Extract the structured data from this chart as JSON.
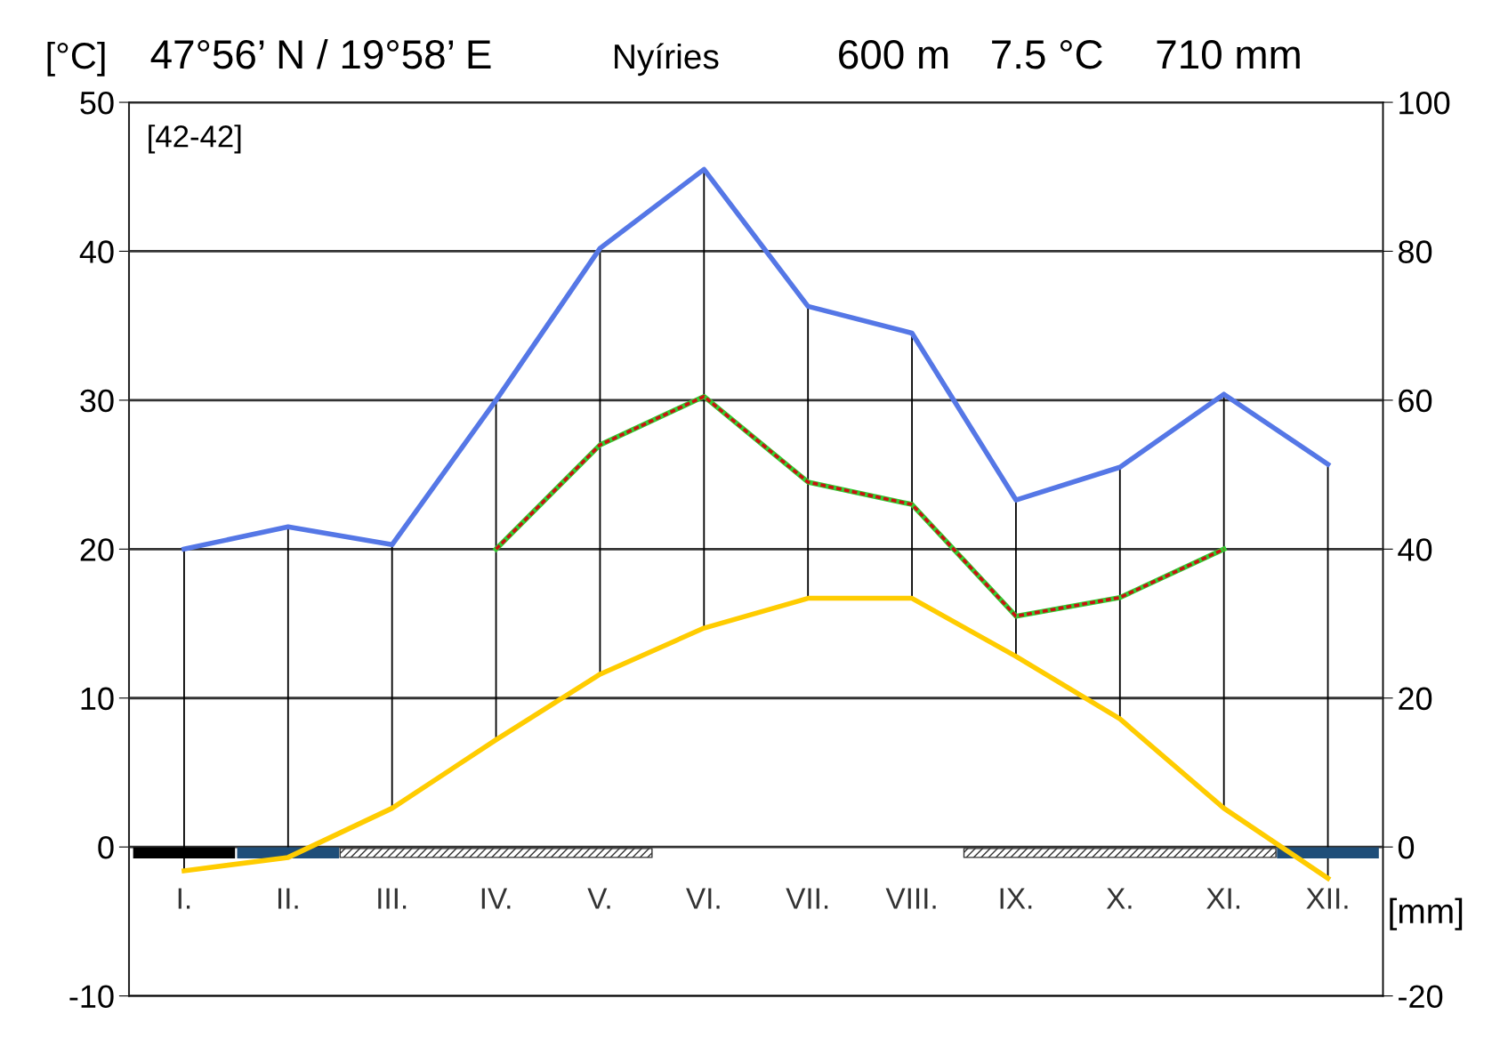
{
  "chart_data": {
    "type": "line",
    "ylabel": "[°C]",
    "y2label": "[mm]",
    "annotations": [
      "47°56’ N / 19°58’ E",
      "Nyíries",
      "600 m",
      "7.5 °C",
      "710 mm",
      "[42-42]"
    ],
    "categories": [
      "I.",
      "II.",
      "III.",
      "IV.",
      "V.",
      "VI.",
      "VII.",
      "VIII.",
      "IX.",
      "X.",
      "XI.",
      "XII."
    ],
    "series": [
      {
        "color": "#ffcc00",
        "values": [
          -1.6,
          -0.7,
          2.6,
          7.2,
          11.6,
          14.7,
          16.7,
          16.7,
          12.8,
          8.6,
          2.6,
          -2.1
        ]
      },
      {
        "color": "#5577e6",
        "axis": "y2",
        "values": [
          40,
          43,
          40.6,
          60,
          80.4,
          91,
          72.6,
          69,
          46.6,
          51,
          60.8,
          51.4
        ]
      },
      {
        "color": "#33cc33",
        "axis": "y2",
        "line_style": "solid",
        "values": [
          null,
          null,
          null,
          40,
          54,
          60.5,
          49,
          46,
          31,
          33.5,
          40,
          null
        ]
      },
      {
        "color": "#cc1111",
        "axis": "y2",
        "line_style": "dashed",
        "values": [
          null,
          null,
          null,
          40,
          54,
          60.5,
          49,
          46,
          31,
          33.5,
          40,
          null
        ]
      }
    ],
    "ylim": [
      -10,
      50
    ],
    "yticks": [
      -10,
      0,
      10,
      20,
      30,
      40,
      50
    ],
    "y2lim": [
      -20,
      100
    ],
    "y2ticks": [
      -20,
      0,
      20,
      40,
      60,
      80,
      100
    ],
    "grid": "y"
  }
}
